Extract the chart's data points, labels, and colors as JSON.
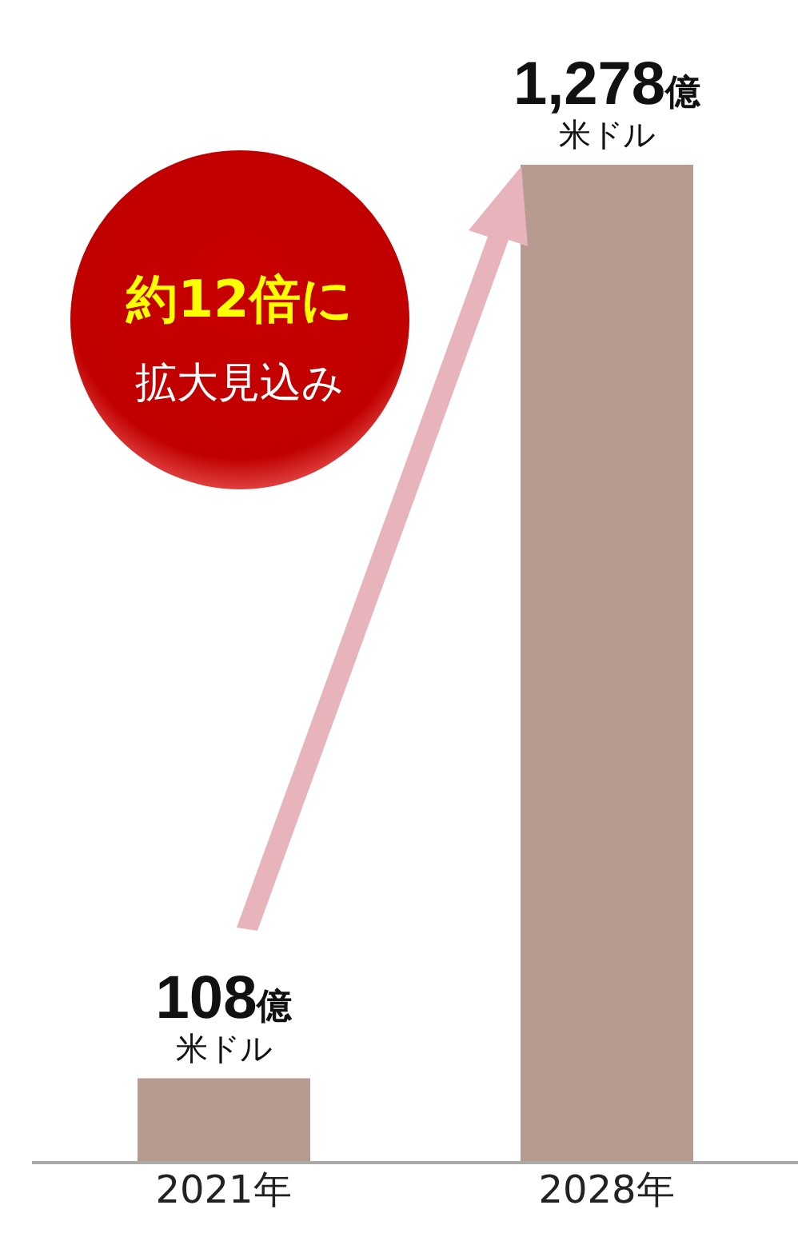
{
  "chart_data": {
    "type": "bar",
    "categories": [
      "2021年",
      "2028年"
    ],
    "values": [
      108,
      1278
    ],
    "color": "#b89b90",
    "value_labels": [
      "108億米ドル",
      "1,278億米ドル"
    ],
    "annotations": [
      "約12倍に",
      "拡大見込み"
    ]
  }
}
